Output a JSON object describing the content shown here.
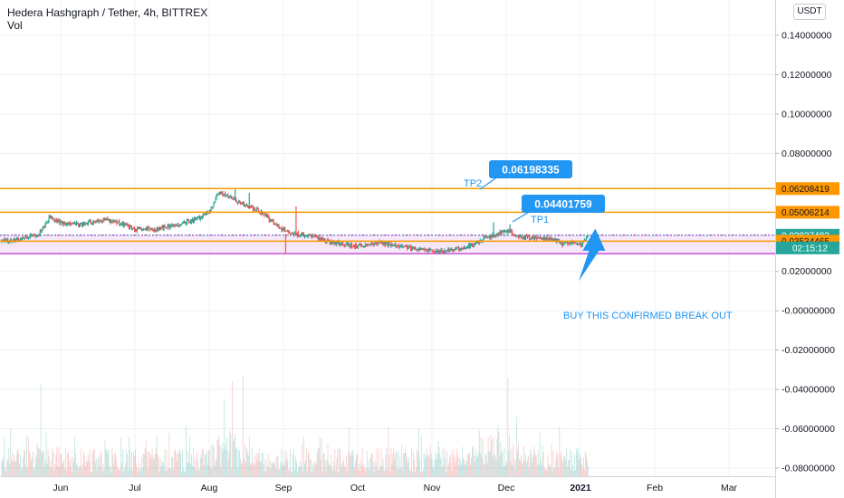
{
  "legend": {
    "title": "Hedera Hashgraph / Tether, 4h, BITTREX",
    "vol": "Vol"
  },
  "currency": "USDT",
  "chart_data": {
    "type": "candlestick",
    "symbol": "HBAR/USDT",
    "ylim": [
      -0.09,
      0.16
    ],
    "y_ticks": [
      "0.14000000",
      "0.12000000",
      "0.10000000",
      "0.08000000",
      "0.02000000",
      "-0.00000000",
      "-0.02000000",
      "-0.04000000",
      "-0.06000000",
      "-0.08000000"
    ],
    "y_tick_values": [
      0.14,
      0.12,
      0.1,
      0.08,
      0.02,
      0.0,
      -0.02,
      -0.04,
      -0.06,
      -0.08
    ],
    "x_ticks": [
      {
        "label": "Jun",
        "t": 1.0
      },
      {
        "label": "Jul",
        "t": 2.0
      },
      {
        "label": "Aug",
        "t": 3.0
      },
      {
        "label": "Sep",
        "t": 4.0
      },
      {
        "label": "Oct",
        "t": 5.0
      },
      {
        "label": "Nov",
        "t": 6.0
      },
      {
        "label": "Dec",
        "t": 7.0
      },
      {
        "label": "2021",
        "t": 8.0,
        "bold": true
      },
      {
        "label": "Feb",
        "t": 9.0
      },
      {
        "label": "Mar",
        "t": 10.0
      }
    ],
    "t_range": [
      0.2,
      10.5
    ],
    "price_path": [
      [
        0.2,
        0.0352
      ],
      [
        0.45,
        0.0365
      ],
      [
        0.7,
        0.039
      ],
      [
        0.85,
        0.048
      ],
      [
        1.0,
        0.0445
      ],
      [
        1.3,
        0.044
      ],
      [
        1.6,
        0.0465
      ],
      [
        1.85,
        0.044
      ],
      [
        2.0,
        0.041
      ],
      [
        2.3,
        0.0415
      ],
      [
        2.6,
        0.044
      ],
      [
        2.85,
        0.047
      ],
      [
        3.0,
        0.05
      ],
      [
        3.12,
        0.06
      ],
      [
        3.25,
        0.058
      ],
      [
        3.45,
        0.054
      ],
      [
        3.7,
        0.05
      ],
      [
        3.95,
        0.042
      ],
      [
        4.1,
        0.0395
      ],
      [
        4.4,
        0.0375
      ],
      [
        4.7,
        0.0345
      ],
      [
        5.0,
        0.033
      ],
      [
        5.3,
        0.0345
      ],
      [
        5.6,
        0.0325
      ],
      [
        5.9,
        0.031
      ],
      [
        6.1,
        0.03
      ],
      [
        6.35,
        0.0315
      ],
      [
        6.55,
        0.0335
      ],
      [
        6.7,
        0.037
      ],
      [
        6.85,
        0.0385
      ],
      [
        7.0,
        0.041
      ],
      [
        7.15,
        0.0375
      ],
      [
        7.4,
        0.037
      ],
      [
        7.6,
        0.0365
      ],
      [
        7.75,
        0.034
      ],
      [
        7.9,
        0.035
      ],
      [
        8.0,
        0.034
      ],
      [
        8.1,
        0.0384
      ]
    ],
    "wick_spikes": [
      {
        "t": 3.35,
        "high": 0.062
      },
      {
        "t": 3.54,
        "high": 0.06
      },
      {
        "t": 4.17,
        "high": 0.053
      },
      {
        "t": 6.83,
        "high": 0.045
      },
      {
        "t": 7.05,
        "high": 0.044
      }
    ],
    "volume_max_label": "spikes near Aug and Dec",
    "horizontal_levels": [
      {
        "value": 0.06208419,
        "label": "0.06208419",
        "color": "#ff9800"
      },
      {
        "value": 0.05006214,
        "label": "0.05006214",
        "color": "#ff9800"
      },
      {
        "value": 0.03837482,
        "label": "0.03837482",
        "color": "#26a69a"
      },
      {
        "value": 0.03534465,
        "label": "0.03534465",
        "color": "#ff9800"
      }
    ],
    "support_zone": {
      "top": 0.0384,
      "bottom": 0.029,
      "color": "#9c27b0"
    },
    "countdown": "02:15:12",
    "callouts": [
      {
        "label": "0.06198335",
        "t": 6.6,
        "price": 0.064,
        "name": "TP2"
      },
      {
        "label": "0.04401759",
        "t": 7.15,
        "price": 0.052,
        "name": "TP1"
      }
    ],
    "annotations": [
      {
        "text": "TP2",
        "t": 6.35,
        "price": 0.062
      },
      {
        "text": "TP1",
        "t": 7.35,
        "price": 0.0445
      },
      {
        "text": "BUY THIS CONFIRMED BREAK OUT",
        "t": 7.8,
        "price": 0.01
      }
    ]
  },
  "colors": {
    "up": "#26a69a",
    "down": "#ef5350",
    "orange": "#ff9800",
    "blue": "#2196f3",
    "grid": "#eef0f3",
    "zone": "#f3e0f6",
    "zone_line": "#b000c8"
  }
}
